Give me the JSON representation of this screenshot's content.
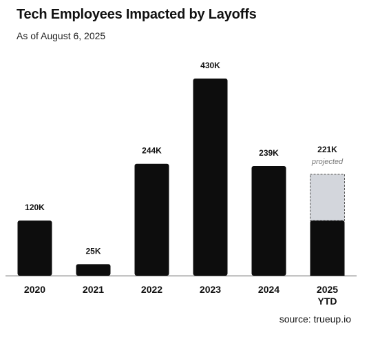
{
  "header": {
    "title": "Tech Employees Impacted by Layoffs",
    "subtitle": "As of August 6, 2025"
  },
  "footer": {
    "source": "source: trueup.io"
  },
  "colors": {
    "bar": "#0d0d0d",
    "projected_fill": "#d3d6dc",
    "projected_border": "#555555",
    "axis": "#555555",
    "projected_label": "#777777"
  },
  "chart_data": {
    "type": "bar",
    "title": "Tech Employees Impacted by Layoffs",
    "subtitle": "As of August 6, 2025",
    "xlabel": "",
    "ylabel": "",
    "grid": false,
    "categories": [
      "2020",
      "2021",
      "2022",
      "2023",
      "2024",
      "2025 YTD"
    ],
    "category_lines": [
      [
        "2020"
      ],
      [
        "2021"
      ],
      [
        "2022"
      ],
      [
        "2023"
      ],
      [
        "2024"
      ],
      [
        "2025",
        "YTD"
      ]
    ],
    "values": [
      120,
      25,
      244,
      430,
      239,
      221
    ],
    "data_labels": [
      "120K",
      "25K",
      "244K",
      "430K",
      "239K",
      "221K"
    ],
    "projected": {
      "category": "2025 YTD",
      "actual_value": 120,
      "projected_total": 221,
      "label": "projected"
    },
    "ylim": [
      0,
      430
    ]
  }
}
